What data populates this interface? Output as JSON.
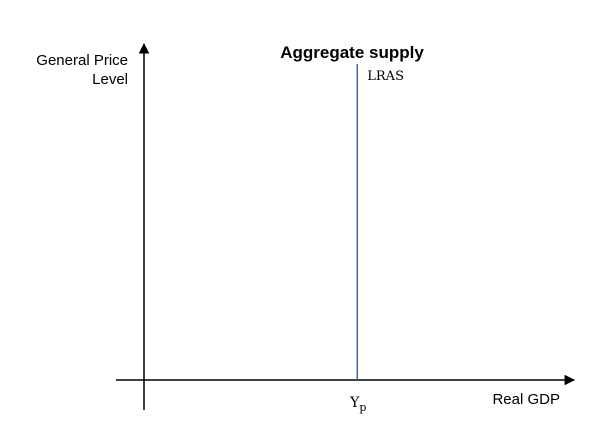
{
  "title": "Aggregate supply",
  "y_axis_label_line1": "General Price",
  "y_axis_label_line2": "Level",
  "x_axis_label": "Real GDP",
  "curve_label": "LRAS",
  "tick_label_main": "Y",
  "tick_label_sub": "p",
  "colors": {
    "axes": "#000000",
    "lras_line": "#2f6fa8",
    "text": "#000000"
  },
  "diagram": {
    "lras": {
      "x_fraction": 0.496,
      "y_top_fraction": 0.94
    }
  }
}
